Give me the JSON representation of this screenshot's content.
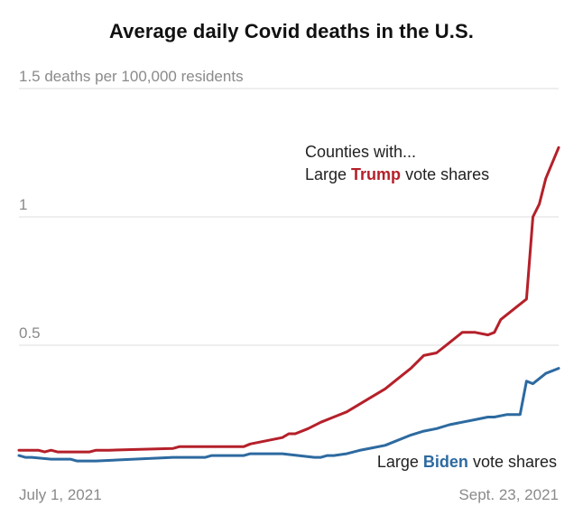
{
  "chart_data": {
    "type": "line",
    "title": "Average daily Covid deaths in the U.S.",
    "x_start_label": "July 1, 2021",
    "x_end_label": "Sept. 23, 2021",
    "y_ticks": [
      {
        "value": 1.5,
        "label": "1.5 deaths per 100,000 residents"
      },
      {
        "value": 1,
        "label": "1"
      },
      {
        "value": 0.5,
        "label": "0.5"
      }
    ],
    "ylim": [
      0,
      1.5
    ],
    "grid": true,
    "annotation_intro": "Counties with...",
    "series": [
      {
        "name": "Large Trump vote shares",
        "label_prefix": "Large ",
        "label_highlight": "Trump",
        "label_suffix": " vote shares",
        "color": "#b5202a",
        "x": [
          "2021-07-01",
          "2021-07-04",
          "2021-07-05",
          "2021-07-06",
          "2021-07-07",
          "2021-07-08",
          "2021-07-12",
          "2021-07-13",
          "2021-07-15",
          "2021-07-25",
          "2021-07-26",
          "2021-08-05",
          "2021-08-06",
          "2021-08-11",
          "2021-08-12",
          "2021-08-13",
          "2021-08-15",
          "2021-08-17",
          "2021-08-19",
          "2021-08-21",
          "2021-08-23",
          "2021-08-25",
          "2021-08-27",
          "2021-08-29",
          "2021-08-31",
          "2021-09-02",
          "2021-09-04",
          "2021-09-06",
          "2021-09-08",
          "2021-09-10",
          "2021-09-12",
          "2021-09-13",
          "2021-09-14",
          "2021-09-15",
          "2021-09-16",
          "2021-09-17",
          "2021-09-18",
          "2021-09-19",
          "2021-09-20",
          "2021-09-21",
          "2021-09-23"
        ],
        "y": [
          0.091,
          0.091,
          0.084,
          0.091,
          0.084,
          0.084,
          0.084,
          0.091,
          0.091,
          0.098,
          0.105,
          0.105,
          0.115,
          0.14,
          0.155,
          0.155,
          0.175,
          0.2,
          0.22,
          0.24,
          0.27,
          0.3,
          0.33,
          0.37,
          0.41,
          0.46,
          0.47,
          0.51,
          0.55,
          0.55,
          0.54,
          0.55,
          0.6,
          0.62,
          0.64,
          0.66,
          0.68,
          1.0,
          1.05,
          1.15,
          1.27
        ]
      },
      {
        "name": "Large Biden vote shares",
        "label_prefix": "Large ",
        "label_highlight": "Biden",
        "label_suffix": " vote shares",
        "color": "#2d6aa0",
        "x": [
          "2021-07-01",
          "2021-07-02",
          "2021-07-03",
          "2021-07-06",
          "2021-07-07",
          "2021-07-09",
          "2021-07-10",
          "2021-07-12",
          "2021-07-13",
          "2021-07-25",
          "2021-07-26",
          "2021-07-30",
          "2021-07-31",
          "2021-08-05",
          "2021-08-06",
          "2021-08-09",
          "2021-08-11",
          "2021-08-16",
          "2021-08-17",
          "2021-08-18",
          "2021-08-19",
          "2021-08-21",
          "2021-08-23",
          "2021-08-25",
          "2021-08-27",
          "2021-08-31",
          "2021-09-02",
          "2021-09-04",
          "2021-09-06",
          "2021-09-08",
          "2021-09-10",
          "2021-09-12",
          "2021-09-13",
          "2021-09-15",
          "2021-09-17",
          "2021-09-18",
          "2021-09-19",
          "2021-09-20",
          "2021-09-21",
          "2021-09-23"
        ],
        "y": [
          0.07,
          0.063,
          0.063,
          0.056,
          0.056,
          0.056,
          0.049,
          0.049,
          0.049,
          0.063,
          0.063,
          0.063,
          0.07,
          0.07,
          0.077,
          0.077,
          0.077,
          0.063,
          0.063,
          0.07,
          0.07,
          0.077,
          0.09,
          0.1,
          0.11,
          0.15,
          0.165,
          0.175,
          0.19,
          0.2,
          0.21,
          0.22,
          0.22,
          0.23,
          0.23,
          0.36,
          0.35,
          0.37,
          0.39,
          0.41
        ]
      }
    ]
  }
}
